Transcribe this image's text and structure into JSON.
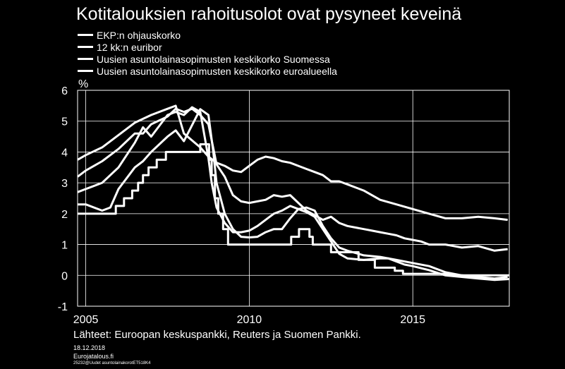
{
  "figure": {
    "title": "Kotitalouksien rahoitusolot ovat pysyneet keveinä",
    "source": "Lähteet: Euroopan keskuspankki, Reuters ja Suomen Pankki.",
    "date": "18.12.2018",
    "site": "Eurojatalous.fi",
    "code": "25232@Uudet asuntolainakorotET518K4"
  },
  "chart_data": {
    "type": "line",
    "title": "Kotitalouksien rahoitusolot ovat pysyneet keveinä",
    "ylabel": "%",
    "xlabel": "",
    "xlim": [
      2004.75,
      2017.95
    ],
    "ylim": [
      -1,
      6
    ],
    "yticks": [
      -1,
      0,
      1,
      2,
      3,
      4,
      5,
      6
    ],
    "xticks": [
      2005,
      2010,
      2015
    ],
    "grid": true,
    "legend_position": "top-left",
    "series": [
      {
        "name": "EKP:n ohjauskorko",
        "step": true,
        "x": [
          2004.75,
          2005.92,
          2006.17,
          2006.42,
          2006.6,
          2006.75,
          2006.92,
          2007.17,
          2007.45,
          2008.5,
          2008.77,
          2008.85,
          2008.95,
          2009.05,
          2009.2,
          2009.35,
          2010.0,
          2011.28,
          2011.52,
          2011.84,
          2011.94,
          2012.5,
          2013.34,
          2013.84,
          2014.45,
          2014.7,
          2016.2,
          2017.95
        ],
        "y": [
          2.0,
          2.25,
          2.5,
          2.75,
          3.0,
          3.25,
          3.5,
          3.75,
          4.0,
          4.25,
          3.75,
          3.25,
          2.5,
          2.0,
          1.5,
          1.0,
          1.0,
          1.25,
          1.5,
          1.25,
          1.0,
          0.75,
          0.5,
          0.25,
          0.15,
          0.05,
          0.0,
          0.0
        ]
      },
      {
        "name": "12 kk:n euribor",
        "x": [
          2004.75,
          2005.0,
          2005.5,
          2005.75,
          2006.0,
          2006.5,
          2006.75,
          2007.0,
          2007.5,
          2007.75,
          2008.0,
          2008.5,
          2008.75,
          2008.9,
          2009.0,
          2009.25,
          2009.5,
          2009.75,
          2010.0,
          2010.25,
          2010.5,
          2010.75,
          2011.0,
          2011.25,
          2011.5,
          2011.75,
          2012.0,
          2012.25,
          2012.5,
          2012.75,
          2013.0,
          2013.5,
          2014.0,
          2014.25,
          2014.5,
          2014.75,
          2015.0,
          2015.5,
          2016.0,
          2016.5,
          2017.0,
          2017.5,
          2017.95
        ],
        "y": [
          2.3,
          2.3,
          2.1,
          2.2,
          2.8,
          3.5,
          3.7,
          4.0,
          4.5,
          4.7,
          4.35,
          5.39,
          5.2,
          4.0,
          3.0,
          2.0,
          1.5,
          1.25,
          1.23,
          1.25,
          1.4,
          1.5,
          1.5,
          1.85,
          2.15,
          2.05,
          1.9,
          1.5,
          1.1,
          0.7,
          0.55,
          0.5,
          0.55,
          0.55,
          0.45,
          0.35,
          0.3,
          0.17,
          0.0,
          -0.05,
          -0.1,
          -0.15,
          -0.12
        ]
      },
      {
        "name": "Uusien asuntolainasopimusten keskikorko Suomessa",
        "x": [
          2004.75,
          2005.0,
          2005.5,
          2006.0,
          2006.5,
          2006.75,
          2007.0,
          2007.5,
          2007.75,
          2008.0,
          2008.25,
          2008.5,
          2008.75,
          2008.85,
          2009.0,
          2009.25,
          2009.5,
          2009.75,
          2010.0,
          2010.25,
          2010.5,
          2010.75,
          2011.0,
          2011.25,
          2011.5,
          2011.75,
          2012.0,
          2012.25,
          2012.5,
          2012.75,
          2013.0,
          2013.5,
          2014.0,
          2014.5,
          2015.0,
          2015.5,
          2016.0,
          2016.5,
          2017.0,
          2017.5,
          2017.9
        ],
        "y": [
          2.7,
          2.8,
          3.0,
          3.5,
          4.3,
          4.8,
          4.5,
          5.2,
          5.3,
          5.2,
          5.45,
          5.3,
          3.8,
          3.0,
          2.2,
          1.7,
          1.4,
          1.4,
          1.45,
          1.6,
          1.8,
          2.0,
          2.1,
          2.25,
          2.15,
          2.2,
          2.1,
          1.6,
          1.2,
          0.9,
          0.8,
          0.65,
          0.6,
          0.5,
          0.4,
          0.3,
          0.1,
          0.0,
          -0.05,
          -0.1,
          -0.05
        ]
      },
      {
        "name": "Uusien asuntolainasopimusten keskikorko euroalueella",
        "x": [
          2004.75,
          2005.0,
          2005.5,
          2006.0,
          2006.5,
          2006.75,
          2007.0,
          2007.5,
          2007.75,
          2008.0,
          2008.25,
          2008.5,
          2008.75,
          2009.0,
          2009.25,
          2009.5,
          2009.75,
          2010.0,
          2010.25,
          2010.5,
          2010.75,
          2011.0,
          2011.25,
          2011.5,
          2011.75,
          2012.0,
          2012.25,
          2012.5,
          2012.75,
          2013.0,
          2013.25,
          2013.5,
          2013.75,
          2014.0,
          2014.25,
          2014.5,
          2014.75,
          2015.0,
          2015.25,
          2015.5,
          2015.75,
          2016.0,
          2016.5,
          2017.0,
          2017.5,
          2017.9
        ],
        "y": [
          3.2,
          3.4,
          3.7,
          4.1,
          4.6,
          4.6,
          4.9,
          5.15,
          5.4,
          5.3,
          5.4,
          5.2,
          4.9,
          3.6,
          3.2,
          2.6,
          2.4,
          2.35,
          2.4,
          2.45,
          2.6,
          2.55,
          2.6,
          2.35,
          2.1,
          1.95,
          1.8,
          1.9,
          1.7,
          1.6,
          1.55,
          1.5,
          1.45,
          1.4,
          1.35,
          1.3,
          1.2,
          1.15,
          1.1,
          1.0,
          1.0,
          1.0,
          0.9,
          0.95,
          0.8,
          0.85
        ]
      },
      {
        "name": "Uusien asuntolainasopimusten keskikorko euroalueella (upper)",
        "x": [
          2004.75,
          2005.0,
          2005.5,
          2006.0,
          2006.5,
          2007.0,
          2007.5,
          2007.75,
          2008.0,
          2008.5,
          2008.75,
          2009.0,
          2009.25,
          2009.5,
          2009.75,
          2010.0,
          2010.25,
          2010.5,
          2010.75,
          2011.0,
          2011.25,
          2011.5,
          2011.75,
          2012.0,
          2012.25,
          2012.5,
          2012.75,
          2013.0,
          2013.5,
          2014.0,
          2014.5,
          2015.0,
          2015.5,
          2016.0,
          2016.5,
          2017.0,
          2017.5,
          2017.9
        ],
        "y": [
          3.75,
          3.9,
          4.15,
          4.55,
          4.95,
          5.2,
          5.4,
          5.5,
          4.6,
          4.15,
          3.85,
          3.65,
          3.55,
          3.4,
          3.35,
          3.55,
          3.75,
          3.85,
          3.8,
          3.7,
          3.65,
          3.55,
          3.45,
          3.35,
          3.25,
          3.05,
          3.05,
          2.95,
          2.75,
          2.45,
          2.3,
          2.15,
          2.0,
          1.85,
          1.85,
          1.9,
          1.85,
          1.8
        ]
      }
    ],
    "legend": [
      "EKP:n ohjauskorko",
      "12 kk:n euribor",
      "Uusien asuntolainasopimusten keskikorko Suomessa",
      "Uusien asuntolainasopimusten keskikorko euroalueella"
    ]
  }
}
